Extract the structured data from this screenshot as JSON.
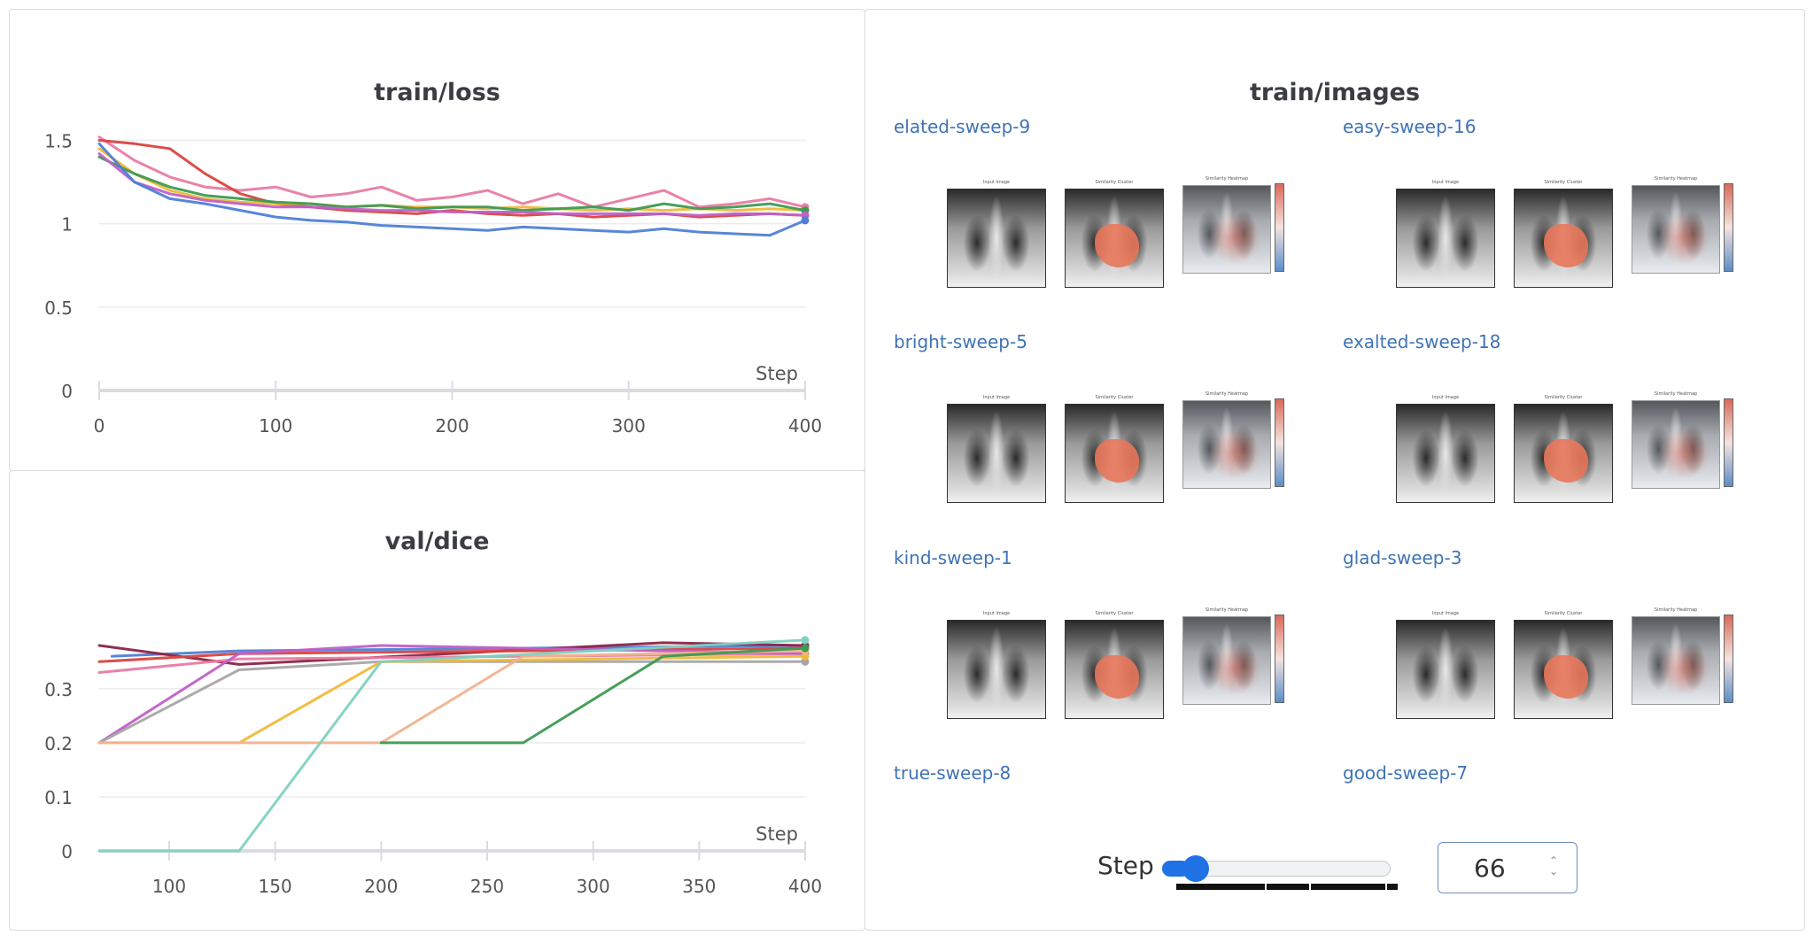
{
  "loss_panel": {
    "title": "train/loss",
    "step_label": "Step",
    "chart_data": {
      "type": "line",
      "title": "train/loss",
      "xlabel": "Step",
      "xlim": [
        0,
        400
      ],
      "ylim": [
        0,
        1.8
      ],
      "x_ticks": [
        0,
        100,
        200,
        300,
        400
      ],
      "y_ticks": [
        0,
        0.5,
        1,
        1.5
      ],
      "x_tick_labels": [
        "0",
        "100",
        "200",
        "300",
        "400"
      ],
      "y_tick_labels": [
        "0",
        "0.5",
        "1",
        "1.5"
      ],
      "grid": true,
      "x": [
        0,
        20,
        40,
        60,
        80,
        100,
        120,
        140,
        160,
        180,
        200,
        220,
        240,
        260,
        280,
        300,
        320,
        340,
        360,
        380,
        400
      ],
      "series": [
        {
          "color": "#e87ba4",
          "values": [
            1.52,
            1.38,
            1.28,
            1.22,
            1.2,
            1.22,
            1.16,
            1.18,
            1.22,
            1.14,
            1.16,
            1.2,
            1.12,
            1.18,
            1.1,
            1.15,
            1.2,
            1.1,
            1.12,
            1.15,
            1.1
          ]
        },
        {
          "color": "#d9443f",
          "values": [
            1.5,
            1.48,
            1.45,
            1.3,
            1.18,
            1.12,
            1.1,
            1.08,
            1.07,
            1.06,
            1.08,
            1.06,
            1.05,
            1.06,
            1.04,
            1.05,
            1.06,
            1.04,
            1.05,
            1.06,
            1.05
          ]
        },
        {
          "color": "#f0b93a",
          "values": [
            1.45,
            1.3,
            1.2,
            1.15,
            1.13,
            1.12,
            1.12,
            1.1,
            1.11,
            1.1,
            1.1,
            1.09,
            1.1,
            1.09,
            1.08,
            1.09,
            1.08,
            1.09,
            1.08,
            1.09,
            1.08
          ]
        },
        {
          "color": "#3d9a52",
          "values": [
            1.4,
            1.3,
            1.22,
            1.17,
            1.15,
            1.13,
            1.12,
            1.1,
            1.11,
            1.09,
            1.1,
            1.1,
            1.08,
            1.09,
            1.1,
            1.08,
            1.12,
            1.09,
            1.1,
            1.12,
            1.08
          ]
        },
        {
          "color": "#c060c8",
          "values": [
            1.42,
            1.25,
            1.18,
            1.14,
            1.12,
            1.1,
            1.1,
            1.09,
            1.08,
            1.08,
            1.07,
            1.07,
            1.07,
            1.06,
            1.06,
            1.06,
            1.06,
            1.05,
            1.06,
            1.06,
            1.05
          ]
        },
        {
          "color": "#4f7fd6",
          "values": [
            1.48,
            1.25,
            1.15,
            1.12,
            1.08,
            1.04,
            1.02,
            1.01,
            0.99,
            0.98,
            0.97,
            0.96,
            0.98,
            0.97,
            0.96,
            0.95,
            0.97,
            0.95,
            0.94,
            0.93,
            1.02
          ]
        }
      ]
    }
  },
  "dice_panel": {
    "title": "val/dice",
    "step_label": "Step",
    "chart_data": {
      "type": "line",
      "title": "val/dice",
      "xlabel": "Step",
      "xlim": [
        67,
        400
      ],
      "ylim": [
        0,
        0.38
      ],
      "x_ticks": [
        100,
        150,
        200,
        250,
        300,
        350,
        400
      ],
      "y_ticks": [
        0,
        0.1,
        0.2,
        0.3
      ],
      "x_tick_labels": [
        "100",
        "150",
        "200",
        "250",
        "300",
        "350",
        "400"
      ],
      "y_tick_labels": [
        "0",
        "0.1",
        "0.2",
        "0.3"
      ],
      "grid": true,
      "series": [
        {
          "color": "#4f7fd6",
          "points": [
            [
              73,
              0.36
            ],
            [
              133,
              0.37
            ],
            [
              400,
              0.38
            ]
          ]
        },
        {
          "color": "#8c2447",
          "points": [
            [
              67,
              0.38
            ],
            [
              133,
              0.345
            ],
            [
              333,
              0.385
            ],
            [
              400,
              0.38
            ]
          ]
        },
        {
          "color": "#d9443f",
          "points": [
            [
              67,
              0.35
            ],
            [
              133,
              0.365
            ],
            [
              400,
              0.375
            ]
          ]
        },
        {
          "color": "#e87ba4",
          "points": [
            [
              67,
              0.33
            ],
            [
              133,
              0.355
            ],
            [
              400,
              0.365
            ]
          ]
        },
        {
          "color": "#c060c8",
          "points": [
            [
              67,
              0.2
            ],
            [
              133,
              0.365
            ],
            [
              200,
              0.38
            ],
            [
              400,
              0.365
            ]
          ]
        },
        {
          "color": "#a6a6a6",
          "points": [
            [
              67,
              0.2
            ],
            [
              133,
              0.335
            ],
            [
              200,
              0.35
            ],
            [
              400,
              0.35
            ]
          ]
        },
        {
          "color": "#f0b93a",
          "points": [
            [
              67,
              0.2
            ],
            [
              133,
              0.2
            ],
            [
              200,
              0.35
            ],
            [
              400,
              0.36
            ]
          ]
        },
        {
          "color": "#f2b290",
          "points": [
            [
              67,
              0.2
            ],
            [
              200,
              0.2
            ],
            [
              267,
              0.36
            ],
            [
              400,
              0.37
            ]
          ]
        },
        {
          "color": "#3d9a52",
          "points": [
            [
              200,
              0.2
            ],
            [
              267,
              0.2
            ],
            [
              333,
              0.36
            ],
            [
              400,
              0.375
            ]
          ]
        },
        {
          "color": "#7fd1c0",
          "points": [
            [
              67,
              0.0
            ],
            [
              133,
              0.0
            ],
            [
              200,
              0.35
            ],
            [
              400,
              0.39
            ]
          ]
        }
      ]
    }
  },
  "images_panel": {
    "title": "train/images",
    "thumb_captions": [
      "Input Image",
      "Similarity Cluster",
      "Similarity Heatmap"
    ],
    "runs": [
      {
        "name": "elated-sweep-9"
      },
      {
        "name": "easy-sweep-16"
      },
      {
        "name": "bright-sweep-5"
      },
      {
        "name": "exalted-sweep-18"
      },
      {
        "name": "kind-sweep-1"
      },
      {
        "name": "glad-sweep-3"
      },
      {
        "name": "true-sweep-8"
      },
      {
        "name": "good-sweep-7"
      }
    ],
    "step_control": {
      "label": "Step",
      "value": "66",
      "slider_fraction": 0.12
    },
    "overlay_color": "#e8775a"
  }
}
